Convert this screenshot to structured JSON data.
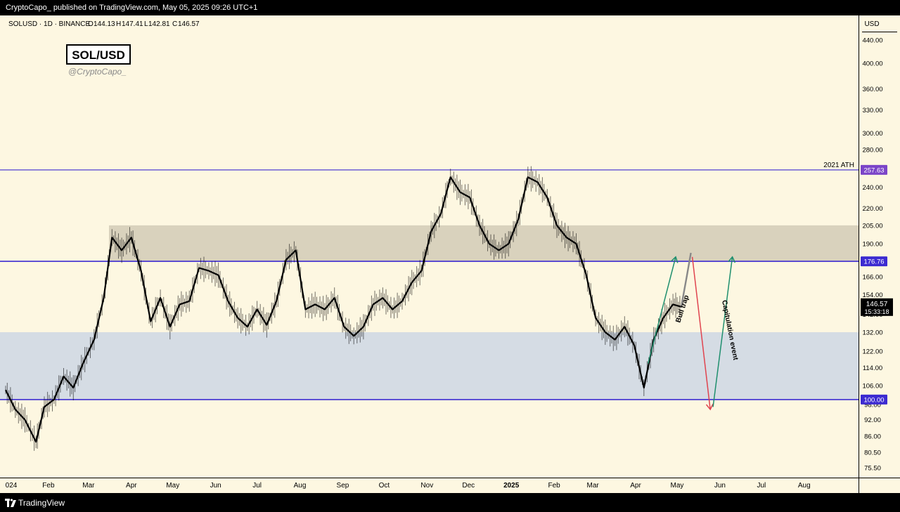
{
  "header": {
    "published_by": "CryptoCapo_ published on TradingView.com, May 05, 2025 09:26 UTC+1"
  },
  "footer": {
    "brand": "TradingView"
  },
  "symbol_line": {
    "name": "SOLUSD · 1D · BINANCE",
    "o_label": "O",
    "o_value": "144.13",
    "h_label": "H",
    "h_value": "147.41",
    "l_label": "L",
    "l_value": "142.81",
    "c_label": "C",
    "c_value": "146.57"
  },
  "watermark": {
    "title": "SOL/USD",
    "handle": "@CryptoCapo_"
  },
  "price_axis": {
    "currency": "USD"
  },
  "colors": {
    "background": "#FDF7E1",
    "candle": "#000000",
    "projection": "#888888",
    "resistance_zone": "#D9D2BD",
    "support_zone": "#D5DCE4",
    "level_line": "#3C2BD1",
    "ath_label_bg": "#7B45C8",
    "arrow_green": "#1F8F6E",
    "arrow_red": "#E0444F",
    "current_price_bg": "#000000"
  },
  "chart_data": {
    "type": "candlestick",
    "symbol": "SOLUSD",
    "timeframe": "1D",
    "exchange": "BINANCE",
    "y_scale": "log",
    "ylim": [
      73,
      470
    ],
    "xlim": [
      "2024-01-01",
      "2025-08-31"
    ],
    "y_ticks": [
      75.5,
      80.5,
      86,
      92,
      98,
      106,
      114,
      122,
      132,
      142,
      154,
      166,
      176.76,
      190,
      205,
      220,
      240,
      257.63,
      280,
      300,
      330,
      360,
      400,
      440
    ],
    "x_ticks": [
      {
        "label": "024",
        "date": "2024-01-01"
      },
      {
        "label": "Feb",
        "date": "2024-02-01"
      },
      {
        "label": "Mar",
        "date": "2024-03-01"
      },
      {
        "label": "Apr",
        "date": "2024-04-01"
      },
      {
        "label": "May",
        "date": "2024-05-01"
      },
      {
        "label": "Jun",
        "date": "2024-06-01"
      },
      {
        "label": "Jul",
        "date": "2024-07-01"
      },
      {
        "label": "Aug",
        "date": "2024-08-01"
      },
      {
        "label": "Sep",
        "date": "2024-09-01"
      },
      {
        "label": "Oct",
        "date": "2024-10-01"
      },
      {
        "label": "Nov",
        "date": "2024-11-01"
      },
      {
        "label": "Dec",
        "date": "2024-12-01"
      },
      {
        "label": "2025",
        "date": "2025-01-01",
        "bold": true
      },
      {
        "label": "Feb",
        "date": "2025-02-01"
      },
      {
        "label": "Mar",
        "date": "2025-03-01"
      },
      {
        "label": "Apr",
        "date": "2025-04-01"
      },
      {
        "label": "May",
        "date": "2025-05-01"
      },
      {
        "label": "Jun",
        "date": "2025-06-01"
      },
      {
        "label": "Jul",
        "date": "2025-07-01"
      },
      {
        "label": "Aug",
        "date": "2025-08-01"
      }
    ],
    "series": [
      {
        "name": "Price",
        "points": [
          [
            "2024-01-01",
            104
          ],
          [
            "2024-01-08",
            96
          ],
          [
            "2024-01-15",
            92
          ],
          [
            "2024-01-23",
            84
          ],
          [
            "2024-01-29",
            97
          ],
          [
            "2024-02-05",
            100
          ],
          [
            "2024-02-12",
            110
          ],
          [
            "2024-02-19",
            105
          ],
          [
            "2024-02-26",
            116
          ],
          [
            "2024-03-05",
            128
          ],
          [
            "2024-03-12",
            152
          ],
          [
            "2024-03-18",
            195
          ],
          [
            "2024-03-25",
            185
          ],
          [
            "2024-04-01",
            195
          ],
          [
            "2024-04-08",
            170
          ],
          [
            "2024-04-15",
            138
          ],
          [
            "2024-04-22",
            152
          ],
          [
            "2024-04-29",
            135
          ],
          [
            "2024-05-06",
            148
          ],
          [
            "2024-05-13",
            150
          ],
          [
            "2024-05-20",
            172
          ],
          [
            "2024-05-27",
            170
          ],
          [
            "2024-06-03",
            167
          ],
          [
            "2024-06-10",
            150
          ],
          [
            "2024-06-17",
            140
          ],
          [
            "2024-06-24",
            135
          ],
          [
            "2024-07-01",
            145
          ],
          [
            "2024-07-08",
            136
          ],
          [
            "2024-07-15",
            150
          ],
          [
            "2024-07-22",
            178
          ],
          [
            "2024-07-29",
            185
          ],
          [
            "2024-08-05",
            145
          ],
          [
            "2024-08-12",
            148
          ],
          [
            "2024-08-19",
            145
          ],
          [
            "2024-08-26",
            152
          ],
          [
            "2024-09-02",
            135
          ],
          [
            "2024-09-09",
            130
          ],
          [
            "2024-09-16",
            135
          ],
          [
            "2024-09-23",
            148
          ],
          [
            "2024-09-30",
            152
          ],
          [
            "2024-10-07",
            145
          ],
          [
            "2024-10-14",
            150
          ],
          [
            "2024-10-21",
            162
          ],
          [
            "2024-10-28",
            170
          ],
          [
            "2024-11-04",
            200
          ],
          [
            "2024-11-11",
            215
          ],
          [
            "2024-11-18",
            250
          ],
          [
            "2024-11-25",
            235
          ],
          [
            "2024-12-02",
            230
          ],
          [
            "2024-12-09",
            205
          ],
          [
            "2024-12-16",
            190
          ],
          [
            "2024-12-23",
            185
          ],
          [
            "2024-12-30",
            190
          ],
          [
            "2025-01-06",
            210
          ],
          [
            "2025-01-13",
            250
          ],
          [
            "2025-01-20",
            245
          ],
          [
            "2025-01-27",
            230
          ],
          [
            "2025-02-03",
            205
          ],
          [
            "2025-02-10",
            195
          ],
          [
            "2025-02-17",
            190
          ],
          [
            "2025-02-24",
            168
          ],
          [
            "2025-03-03",
            140
          ],
          [
            "2025-03-10",
            132
          ],
          [
            "2025-03-17",
            128
          ],
          [
            "2025-03-24",
            135
          ],
          [
            "2025-03-31",
            125
          ],
          [
            "2025-04-07",
            105
          ],
          [
            "2025-04-14",
            128
          ],
          [
            "2025-04-21",
            140
          ],
          [
            "2025-04-28",
            148
          ],
          [
            "2025-05-04",
            146.57
          ]
        ]
      },
      {
        "name": "Projection",
        "points": [
          [
            "2025-05-04",
            146.57
          ],
          [
            "2025-05-08",
            166
          ],
          [
            "2025-05-11",
            183
          ]
        ]
      }
    ],
    "zones": [
      {
        "from": 176.76,
        "to": 205,
        "kind": "resistance"
      },
      {
        "from": 100,
        "to": 132,
        "kind": "support"
      }
    ],
    "levels": [
      {
        "price": 257.63,
        "label": "257.63",
        "note": "2021 ATH"
      },
      {
        "price": 176.76,
        "label": "176.76"
      },
      {
        "price": 100,
        "label": "100.00"
      }
    ],
    "current_price": {
      "label": "146.57",
      "countdown": "15:33:18"
    },
    "annotations": [
      {
        "text": "Bull trap",
        "color": "#1F8F6E"
      },
      {
        "text": "Capitulation event",
        "color": "#E0444F"
      }
    ],
    "arrows": [
      {
        "from": [
          "2025-04-10",
          116
        ],
        "to": [
          "2025-04-30",
          180
        ],
        "color": "#1F8F6E"
      },
      {
        "from": [
          "2025-05-12",
          180
        ],
        "to": [
          "2025-05-25",
          96
        ],
        "color": "#E0444F"
      },
      {
        "from": [
          "2025-05-27",
          97
        ],
        "to": [
          "2025-06-10",
          180
        ],
        "color": "#1F8F6E"
      }
    ]
  }
}
